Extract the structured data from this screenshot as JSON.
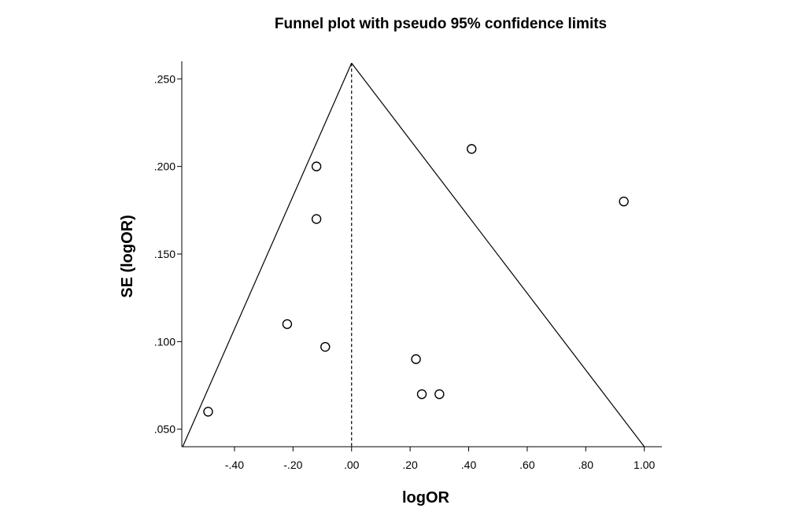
{
  "chart_data": {
    "type": "scatter",
    "title": "Funnel plot with pseudo 95% confidence limits",
    "xlabel": "logOR",
    "ylabel": "SE (logOR)",
    "xlim": [
      -0.58,
      1.06
    ],
    "ylim": [
      0.04,
      0.26
    ],
    "y_reversed": false,
    "x_ticks": [
      -0.4,
      -0.2,
      0.0,
      0.2,
      0.4,
      0.6,
      0.8,
      1.0
    ],
    "x_tick_labels": [
      "-.40",
      "-.20",
      ".00",
      ".20",
      ".40",
      ".60",
      ".80",
      "1.00"
    ],
    "y_ticks": [
      0.05,
      0.1,
      0.15,
      0.2,
      0.25
    ],
    "y_tick_labels": [
      ".050",
      ".100",
      ".150",
      ".200",
      ".250"
    ],
    "grid": false,
    "legend": false,
    "points": [
      {
        "x": -0.49,
        "y": 0.06
      },
      {
        "x": -0.22,
        "y": 0.11
      },
      {
        "x": -0.12,
        "y": 0.2
      },
      {
        "x": -0.12,
        "y": 0.17
      },
      {
        "x": -0.09,
        "y": 0.097
      },
      {
        "x": 0.22,
        "y": 0.09
      },
      {
        "x": 0.24,
        "y": 0.07
      },
      {
        "x": 0.3,
        "y": 0.07
      },
      {
        "x": 0.41,
        "y": 0.21
      },
      {
        "x": 0.93,
        "y": 0.18
      }
    ],
    "pooled_estimate": 0.0,
    "funnel_lines": [
      {
        "from": {
          "x": 0.0,
          "y": 0.259
        },
        "to": {
          "x": -0.577,
          "y": 0.04
        }
      },
      {
        "from": {
          "x": 0.0,
          "y": 0.259
        },
        "to": {
          "x": 1.0,
          "y": 0.04
        }
      }
    ],
    "marker": "open-circle",
    "colors": {
      "line": "#000000",
      "marker_stroke": "#000000",
      "marker_fill": "#ffffff"
    }
  }
}
